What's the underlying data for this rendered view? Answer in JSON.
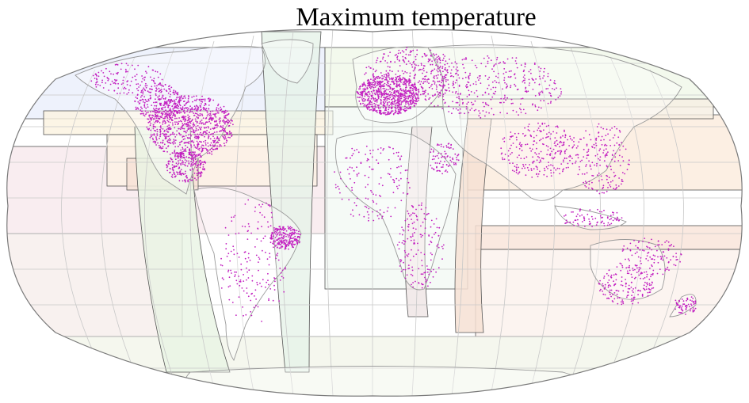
{
  "title": "Maximum temperature",
  "colors": {
    "station_dot": "#c21fc0",
    "land_outline": "#9a9a9a",
    "graticule": "#c8c8c8",
    "region_border": "#555555",
    "ocean": "#ffffff"
  },
  "region_tints": [
    "#e8f0fb",
    "#f3e8f5",
    "#eef7e6",
    "#fbf3e3",
    "#f8e6e0",
    "#e6f4f2"
  ],
  "legend": []
}
